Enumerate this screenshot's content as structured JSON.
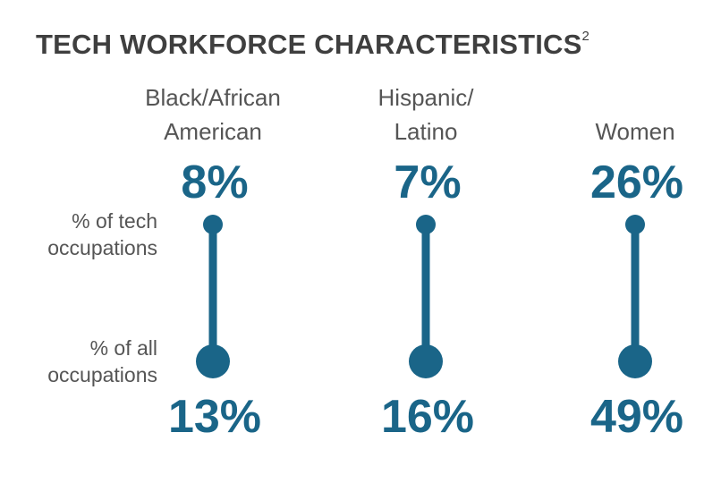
{
  "title": "TECH WORKFORCE CHARACTERISTICS",
  "title_superscript": "2",
  "row_labels": {
    "tech_line1": "% of tech",
    "tech_line2": "occupations",
    "all_line1": "% of all",
    "all_line2": "occupations"
  },
  "colors": {
    "accent": "#1a6588",
    "text": "#555555",
    "title": "#3f3f3f"
  },
  "chart_data": {
    "type": "dumbbell",
    "categories": [
      {
        "line1": "Black/African",
        "line2": "American"
      },
      {
        "line1": "Hispanic/",
        "line2": "Latino"
      },
      {
        "line1": "",
        "line2": "Women"
      }
    ],
    "series": [
      {
        "name": "% of tech occupations",
        "values": [
          8,
          7,
          26
        ],
        "labels": [
          "8%",
          "7%",
          "26%"
        ]
      },
      {
        "name": "% of all occupations",
        "values": [
          13,
          16,
          49
        ],
        "labels": [
          "13%",
          "16%",
          "49%"
        ]
      }
    ]
  }
}
